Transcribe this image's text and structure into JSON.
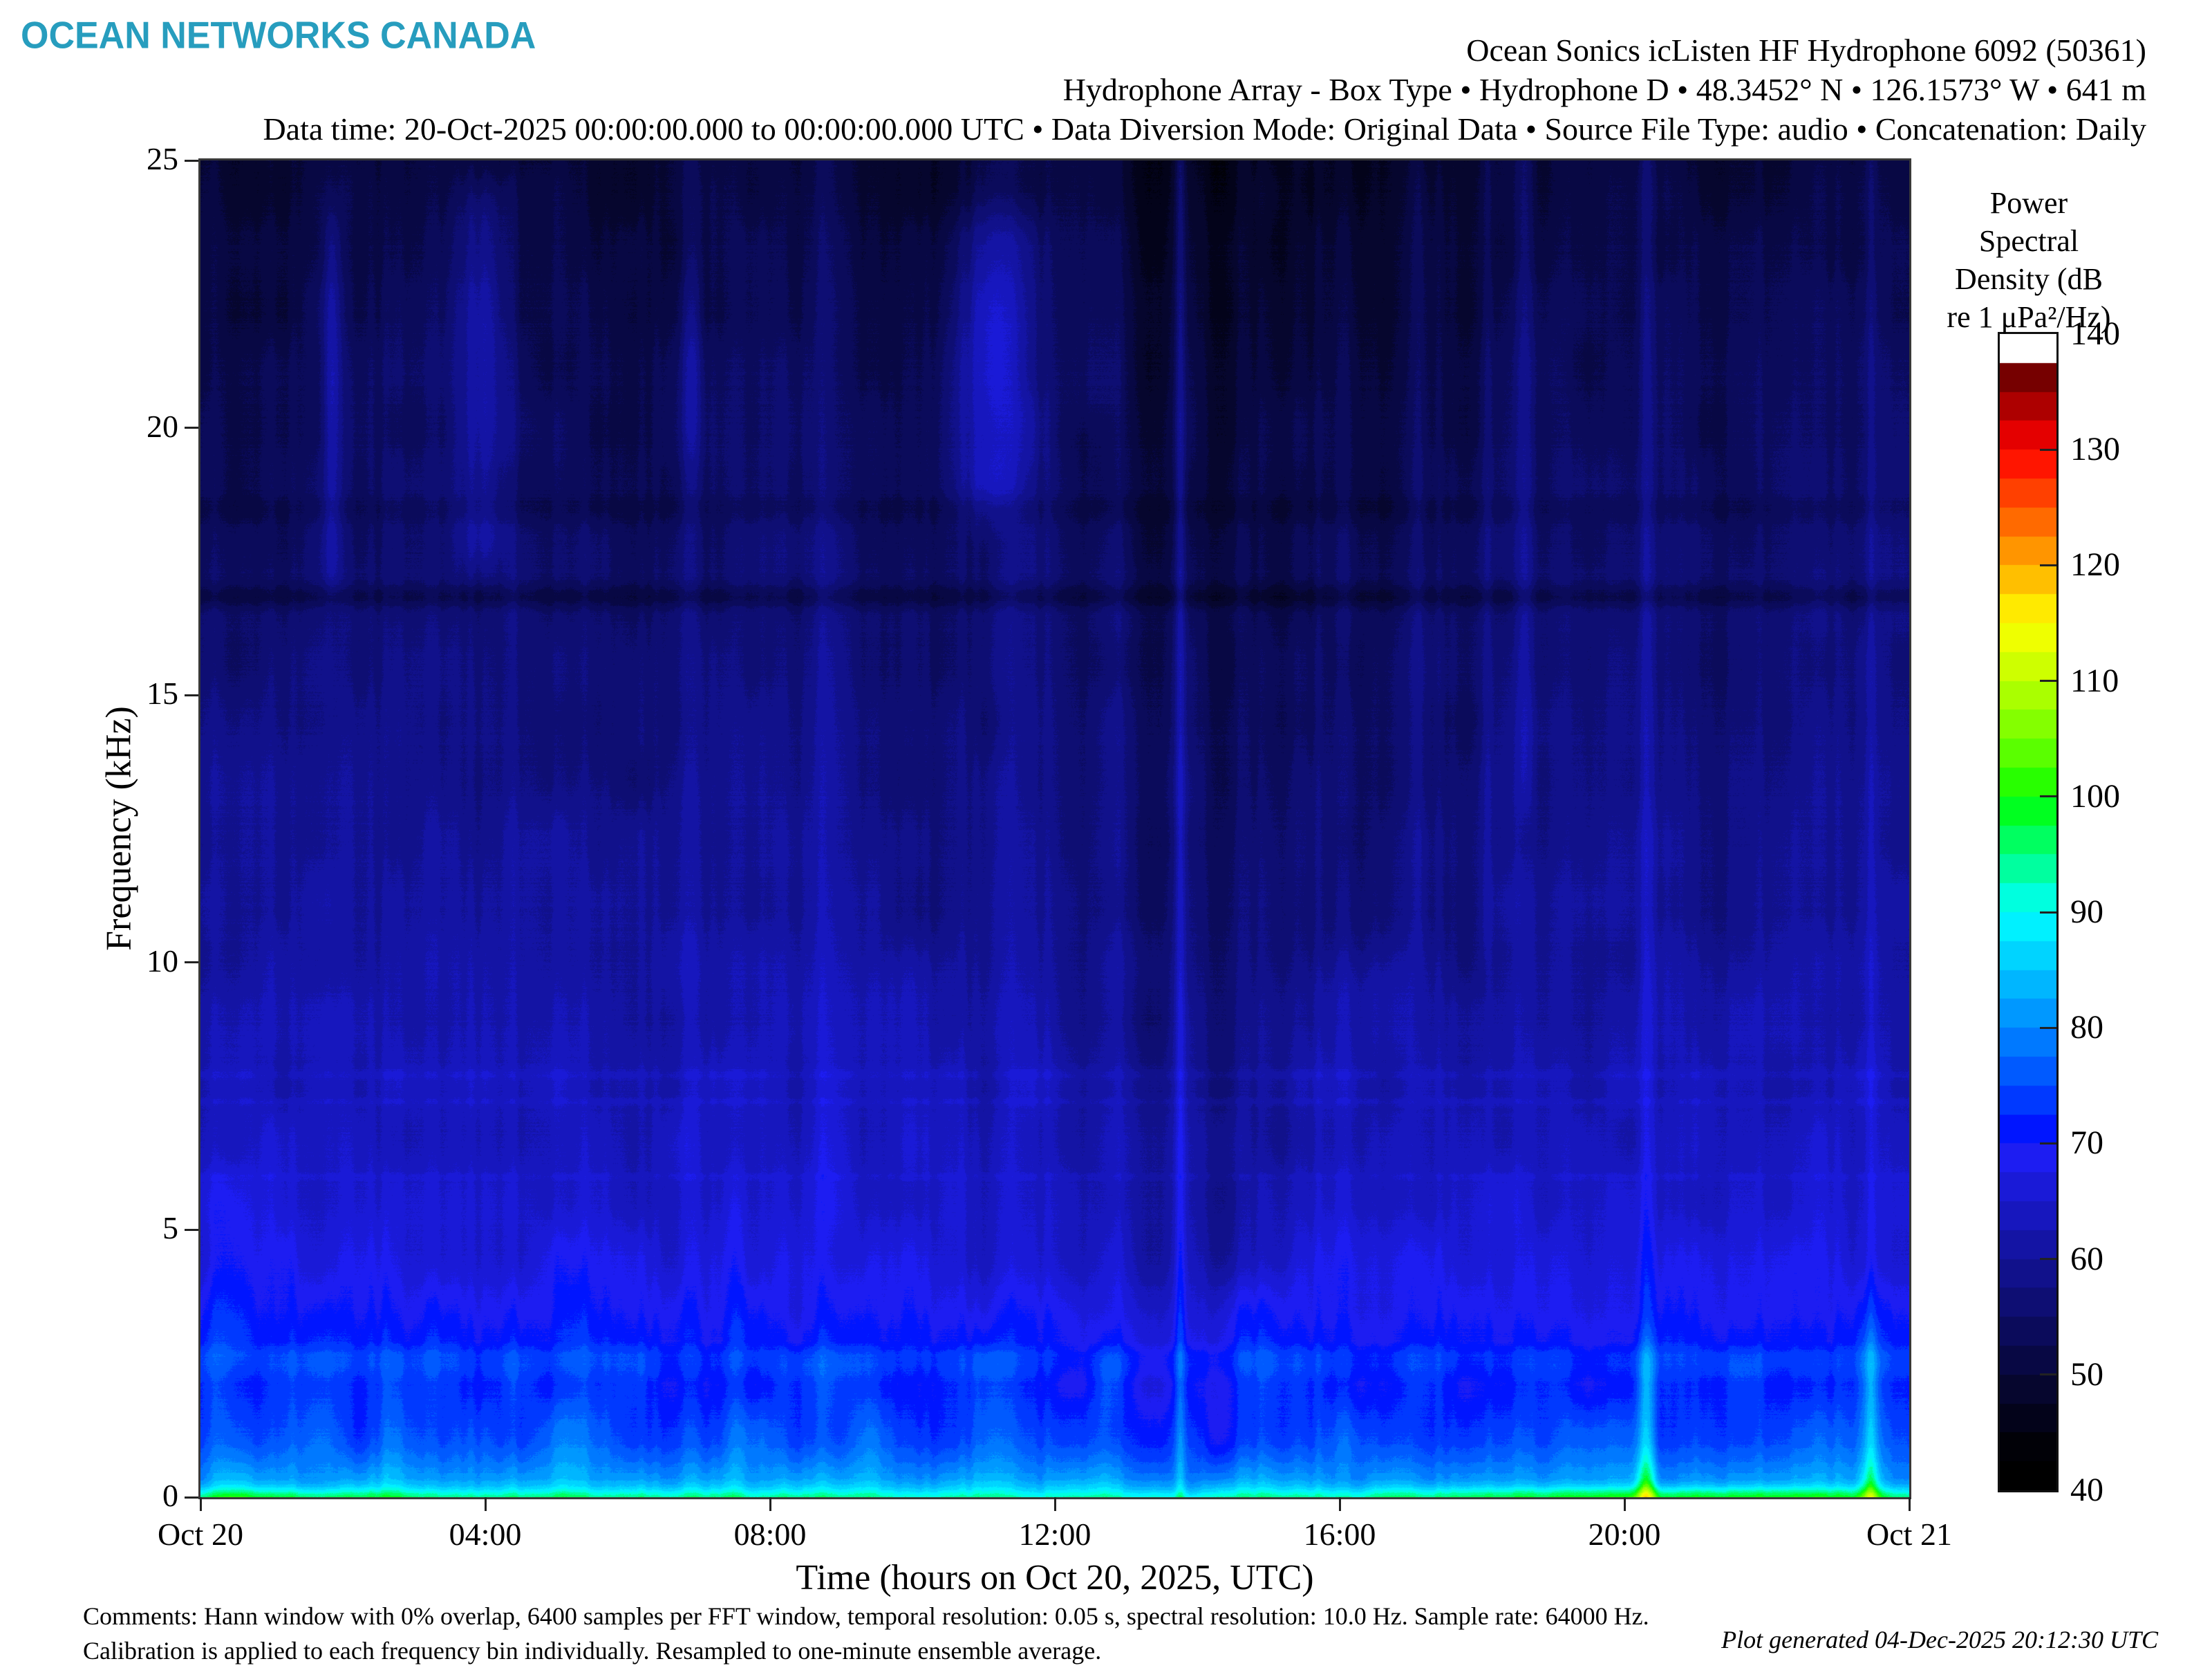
{
  "header": {
    "logo": "OCEAN NETWORKS CANADA",
    "title_lines": [
      "Ocean Sonics icListen HF Hydrophone 6092 (50361)",
      "Hydrophone Array - Box Type • Hydrophone D • 48.3452° N • 126.1573° W • 641 m",
      "Data time: 20-Oct-2025 00:00:00.000 to 00:00:00.000 UTC • Data Diversion Mode: Original Data • Source File Type: audio • Concatenation: Daily"
    ]
  },
  "footer": {
    "comments_line1": "Comments: Hann window with 0% overlap, 6400 samples per FFT window, temporal resolution: 0.05 s, spectral resolution: 10.0 Hz. Sample rate: 64000 Hz.",
    "comments_line2": "Calibration is applied to each frequency bin individually. Resampled to one-minute ensemble average.",
    "generated": "Plot generated 04-Dec-2025 20:12:30 UTC"
  },
  "chart_data": {
    "type": "heatmap",
    "subtype": "spectrogram",
    "xlabel": "Time (hours on Oct 20, 2025, UTC)",
    "ylabel": "Frequency (kHz)",
    "x_range_hours": [
      0,
      24
    ],
    "y_range_khz": [
      0,
      25
    ],
    "x_ticks": [
      {
        "hour": 0,
        "label": "Oct 20"
      },
      {
        "hour": 4,
        "label": "04:00"
      },
      {
        "hour": 8,
        "label": "08:00"
      },
      {
        "hour": 12,
        "label": "12:00"
      },
      {
        "hour": 16,
        "label": "16:00"
      },
      {
        "hour": 20,
        "label": "20:00"
      },
      {
        "hour": 24,
        "label": "Oct 21"
      }
    ],
    "y_ticks_khz": [
      0,
      5,
      10,
      15,
      20,
      25
    ],
    "colorbar": {
      "title_lines": [
        "Power",
        "Spectral",
        "Density (dB",
        "re 1 μPa²/Hz)"
      ],
      "min_db": 40,
      "max_db": 140,
      "segment_db": 2.5,
      "tick_db_marks": [
        50,
        60,
        70,
        80,
        90,
        100,
        110,
        120,
        130
      ],
      "tick_db_labels": [
        140,
        130,
        120,
        110,
        100,
        90,
        80,
        70,
        60,
        50,
        40
      ],
      "overflow_top_color": "#ffffff",
      "underflow_bottom_color": "#000000"
    },
    "background_profile_db_by_khz": [
      [
        0,
        94
      ],
      [
        0.04,
        92.5
      ],
      [
        0.1,
        89
      ],
      [
        0.2,
        84.5
      ],
      [
        0.35,
        81
      ],
      [
        0.6,
        78.5
      ],
      [
        1.0,
        75.5
      ],
      [
        1.5,
        73.5
      ],
      [
        2.1,
        72
      ],
      [
        2.45,
        74
      ],
      [
        2.65,
        74
      ],
      [
        2.9,
        71
      ],
      [
        3.5,
        69
      ],
      [
        4.5,
        66.5
      ],
      [
        6,
        64.5
      ],
      [
        8,
        62.5
      ],
      [
        10,
        61
      ],
      [
        13,
        59
      ],
      [
        16,
        57.2
      ],
      [
        18,
        56
      ],
      [
        20,
        54.8
      ],
      [
        22.5,
        53
      ],
      [
        25,
        51
      ]
    ],
    "tonal_bands": [
      {
        "khz": 16.85,
        "delta_db": -4.0,
        "sigma_khz": 0.15
      },
      {
        "khz": 18.5,
        "delta_db": -1.8,
        "sigma_khz": 0.2
      },
      {
        "khz": 7.9,
        "delta_db": 1.6,
        "sigma_khz": 0.07
      },
      {
        "khz": 7.4,
        "delta_db": 1.2,
        "sigma_khz": 0.06
      },
      {
        "khz": 6.0,
        "delta_db": 1.0,
        "sigma_khz": 0.06
      }
    ],
    "events": [
      {
        "hour": 0.35,
        "sigma_h": 0.2,
        "delta_db": 3,
        "f_lo": 0,
        "f_hi": 6
      },
      {
        "hour": 1.2,
        "sigma_h": 0.12,
        "delta_db": 2.5,
        "f_lo": 0,
        "f_hi": 5
      },
      {
        "hour": 1.85,
        "sigma_h": 0.09,
        "delta_db": 5,
        "f_lo": 17,
        "f_hi": 24,
        "peak_khz": 21,
        "peak_db": 3,
        "peak_sigma": 1.2
      },
      {
        "hour": 2.6,
        "sigma_h": 0.15,
        "delta_db": 2,
        "f_lo": 0,
        "f_hi": 5
      },
      {
        "hour": 3.95,
        "sigma_h": 0.28,
        "delta_db": 5,
        "f_lo": 17.5,
        "f_hi": 24.5,
        "peak_khz": 21.5,
        "peak_db": 4,
        "peak_sigma": 1.4
      },
      {
        "hour": 5.2,
        "sigma_h": 0.15,
        "delta_db": 2,
        "f_lo": 0,
        "f_hi": 4
      },
      {
        "hour": 6.9,
        "sigma_h": 0.1,
        "delta_db": 4,
        "f_lo": 0,
        "f_hi": 25,
        "peak_khz": 21,
        "peak_db": 5,
        "peak_sigma": 1.5
      },
      {
        "hour": 7.5,
        "sigma_h": 0.12,
        "delta_db": 2.5,
        "f_lo": 0,
        "f_hi": 6
      },
      {
        "hour": 8.75,
        "sigma_h": 0.09,
        "delta_db": 3,
        "f_lo": 0,
        "f_hi": 25
      },
      {
        "hour": 9.3,
        "sigma_h": 0.12,
        "delta_db": 2,
        "f_lo": 0,
        "f_hi": 4
      },
      {
        "hour": 11.15,
        "sigma_h": 0.4,
        "delta_db": 7,
        "f_lo": 18.5,
        "f_hi": 24,
        "peak_khz": 21.3,
        "peak_db": 4,
        "peak_sigma": 1.3
      },
      {
        "hour": 11.15,
        "sigma_h": 0.3,
        "delta_db": 2,
        "f_lo": 0,
        "f_hi": 25
      },
      {
        "hour": 12.7,
        "sigma_h": 0.1,
        "delta_db": 2,
        "f_lo": 0,
        "f_hi": 3
      },
      {
        "hour": 13.75,
        "sigma_h": 0.05,
        "delta_db": 6,
        "f_lo": 0,
        "f_hi": 25
      },
      {
        "hour": 17.1,
        "sigma_h": 0.06,
        "delta_db": 2.5,
        "f_lo": 10,
        "f_hi": 25
      },
      {
        "hour": 18.05,
        "sigma_h": 0.06,
        "delta_db": 2.5,
        "f_lo": 10,
        "f_hi": 25
      },
      {
        "hour": 18.6,
        "sigma_h": 0.07,
        "delta_db": 3.5,
        "f_lo": 13,
        "f_hi": 25
      },
      {
        "hour": 20.3,
        "sigma_h": 0.07,
        "delta_db": 4,
        "f_lo": 0,
        "f_hi": 25
      },
      {
        "hour": 20.3,
        "sigma_h": 0.1,
        "delta_db": 7,
        "f_lo": 0,
        "f_hi": 2.8,
        "peak_khz": 0.05,
        "peak_db": 8,
        "peak_sigma": 0.45
      },
      {
        "hour": 20.8,
        "sigma_h": 2.8,
        "delta_db": 5,
        "f_lo": 0,
        "f_hi": 0.18
      },
      {
        "hour": 0.8,
        "sigma_h": 1.2,
        "delta_db": 3,
        "f_lo": 0,
        "f_hi": 0.15
      },
      {
        "hour": 12.5,
        "sigma_h": 3.0,
        "delta_db": -2.5,
        "f_lo": 0,
        "f_hi": 0.12
      },
      {
        "hour": 23.45,
        "sigma_h": 0.06,
        "delta_db": 4,
        "f_lo": 0,
        "f_hi": 25
      },
      {
        "hour": 23.45,
        "sigma_h": 0.09,
        "delta_db": 6,
        "f_lo": 0,
        "f_hi": 3,
        "peak_khz": 0.05,
        "peak_db": 5,
        "peak_sigma": 0.4
      },
      {
        "hour": 13.4,
        "sigma_h": 0.22,
        "delta_db": -6.5,
        "f_lo": 0.35,
        "f_hi": 25
      },
      {
        "hour": 14.2,
        "sigma_h": 0.18,
        "delta_db": -5,
        "f_lo": 0.35,
        "f_hi": 25
      },
      {
        "hour": 14.9,
        "sigma_h": 0.45,
        "delta_db": -3.5,
        "f_lo": 4,
        "f_hi": 25
      },
      {
        "hour": 16.3,
        "sigma_h": 0.7,
        "delta_db": -3,
        "f_lo": 10,
        "f_hi": 25
      },
      {
        "hour": 9.9,
        "sigma_h": 0.5,
        "delta_db": -2.5,
        "f_lo": 10,
        "f_hi": 25
      },
      {
        "hour": 5.6,
        "sigma_h": 0.9,
        "delta_db": -2,
        "f_lo": 13,
        "f_hi": 25
      },
      {
        "hour": 0.7,
        "sigma_h": 0.55,
        "delta_db": -2.5,
        "f_lo": 15,
        "f_hi": 25
      },
      {
        "hour": 12.45,
        "sigma_h": 0.25,
        "delta_db": -3,
        "f_lo": 2,
        "f_hi": 20
      },
      {
        "hour": 11.0,
        "sigma_h": 0.15,
        "delta_db": -3,
        "f_lo": 3,
        "f_hi": 18
      },
      {
        "hour": 17.8,
        "sigma_h": 0.35,
        "delta_db": -2,
        "f_lo": 8,
        "f_hi": 25
      },
      {
        "hour": 21.5,
        "sigma_h": 0.5,
        "delta_db": -1.5,
        "f_lo": 10,
        "f_hi": 25
      }
    ],
    "texture": {
      "cloud_db_low": 2.3,
      "cloud_db_mid": 1.6,
      "cloud_db_high": 1.2,
      "column_noise_db_fine": 1.1,
      "column_noise_db_slow": 0.7,
      "row_noise_db": 0.4,
      "pixel_noise_db": 0.5
    }
  }
}
